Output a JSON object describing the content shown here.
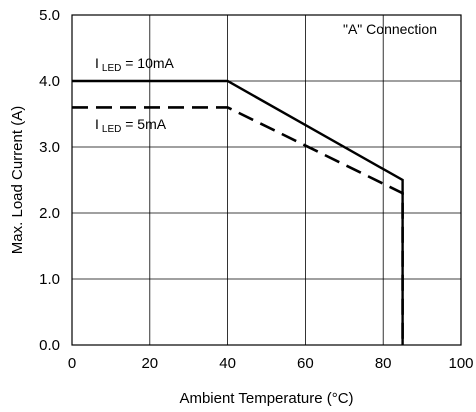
{
  "chart_data": {
    "type": "line",
    "title": "",
    "xlabel": "Ambient Temperature (°C)",
    "ylabel": "Max. Load Current (A)",
    "xlim": [
      0,
      100
    ],
    "ylim": [
      0,
      5
    ],
    "xticks": [
      0,
      20,
      40,
      60,
      80,
      100
    ],
    "yticks": [
      0,
      1,
      2,
      3,
      4,
      5
    ],
    "xtick_labels": [
      "0",
      "20",
      "40",
      "60",
      "80",
      "100"
    ],
    "ytick_labels": [
      "0.0",
      "1.0",
      "2.0",
      "3.0",
      "4.0",
      "5.0"
    ],
    "grid": true,
    "legend": "none",
    "annotation": "\"A\" Connection",
    "series": [
      {
        "style": "solid",
        "color": "#000000",
        "label_main": "I",
        "label_sub": "LED",
        "label_rest": " = 10mA",
        "x": [
          0,
          40,
          85,
          85
        ],
        "y": [
          4.0,
          4.0,
          2.5,
          0.0
        ]
      },
      {
        "style": "dashed",
        "color": "#000000",
        "label_main": "I",
        "label_sub": "LED",
        "label_rest": " =  5mA",
        "x": [
          0,
          40,
          85,
          85
        ],
        "y": [
          3.6,
          3.6,
          2.3,
          0.0
        ]
      }
    ]
  }
}
